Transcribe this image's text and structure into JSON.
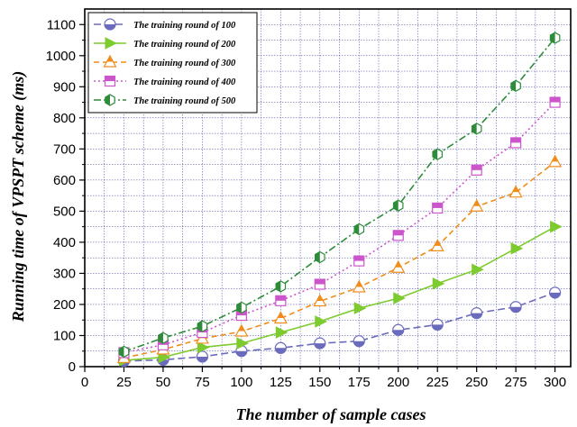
{
  "chart_data": {
    "type": "line",
    "xlabel": "The number of sample cases",
    "ylabel": "Running time of VPSPT scheme (ms)",
    "xlim": [
      0,
      310
    ],
    "ylim": [
      0,
      1150
    ],
    "xticks": [
      0,
      25,
      50,
      75,
      100,
      125,
      150,
      175,
      200,
      225,
      250,
      275,
      300
    ],
    "yticks": [
      0,
      100,
      200,
      300,
      400,
      500,
      600,
      700,
      800,
      900,
      1000,
      1100
    ],
    "grid": true,
    "legend_position": "top-left",
    "x": [
      25,
      50,
      75,
      100,
      125,
      150,
      175,
      200,
      225,
      250,
      275,
      300
    ],
    "series": [
      {
        "name": "The training round of 100",
        "color": "#6b6bbd",
        "marker": "circle",
        "values": [
          18,
          22,
          32,
          50,
          60,
          75,
          82,
          118,
          135,
          172,
          192,
          238
        ]
      },
      {
        "name": "The training round of 200",
        "color": "#7dcb2e",
        "marker": "triangle-right",
        "values": [
          20,
          30,
          62,
          75,
          110,
          145,
          188,
          220,
          267,
          312,
          380,
          450
        ]
      },
      {
        "name": "The training round of 300",
        "color": "#f08c1a",
        "marker": "triangle-up",
        "values": [
          28,
          55,
          90,
          113,
          155,
          210,
          255,
          318,
          387,
          515,
          560,
          658
        ]
      },
      {
        "name": "The training round of 400",
        "color": "#cc55cc",
        "marker": "square",
        "values": [
          45,
          70,
          110,
          165,
          212,
          265,
          340,
          422,
          510,
          632,
          720,
          850
        ]
      },
      {
        "name": "The training round of 500",
        "color": "#2e8b3a",
        "marker": "hexagon",
        "values": [
          48,
          92,
          130,
          190,
          258,
          352,
          442,
          518,
          683,
          765,
          903,
          1057
        ]
      }
    ]
  }
}
